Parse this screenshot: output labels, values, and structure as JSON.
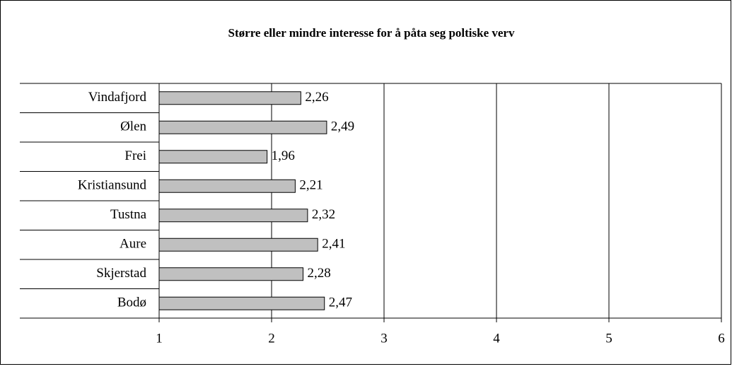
{
  "chart_data": {
    "type": "barh",
    "title": "Større eller mindre interesse for å påta seg poltiske verv",
    "categories": [
      "Vindafjord",
      "Ølen",
      "Frei",
      "Kristiansund",
      "Tustna",
      "Aure",
      "Skjerstad",
      "Bodø"
    ],
    "values": [
      2.26,
      2.49,
      1.96,
      2.21,
      2.32,
      2.41,
      2.28,
      2.47
    ],
    "value_labels": [
      "2,26",
      "2,49",
      "1,96",
      "2,21",
      "2,32",
      "2,41",
      "2,28",
      "2,47"
    ],
    "color": "#c0c0c0",
    "xlim": [
      1,
      6
    ],
    "xticks": [
      1,
      2,
      3,
      4,
      5,
      6
    ],
    "grid": true
  }
}
